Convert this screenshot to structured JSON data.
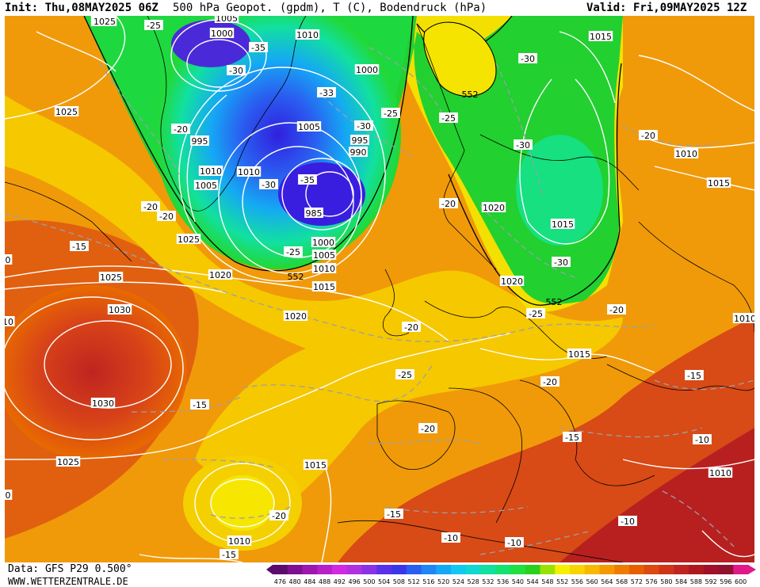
{
  "header": {
    "init": "Init: Thu,08MAY2025 06Z",
    "title": "500 hPa Geopot. (gpdm), T (C), Bodendruck (hPa)",
    "valid": "Valid: Fri,09MAY2025 12Z"
  },
  "footer": {
    "data": "Data: GFS P29 0.500°",
    "site": "WWW.WETTERZENTRALE.DE"
  },
  "legend": {
    "values": [
      "476",
      "480",
      "484",
      "488",
      "492",
      "496",
      "500",
      "504",
      "508",
      "512",
      "516",
      "520",
      "524",
      "528",
      "532",
      "536",
      "540",
      "544",
      "548",
      "552",
      "556",
      "560",
      "564",
      "568",
      "572",
      "576",
      "580",
      "584",
      "588",
      "592",
      "596",
      "600"
    ],
    "colors": [
      "#5c0a6e",
      "#7d1090",
      "#9b17ae",
      "#b81fc8",
      "#d228e0",
      "#b030e0",
      "#8a32e6",
      "#5a30e8",
      "#3b35ea",
      "#2a5ef0",
      "#1f86f2",
      "#15a8f4",
      "#12c8f0",
      "#10d8d0",
      "#12e0a0",
      "#16e070",
      "#1ee040",
      "#2ad01e",
      "#9ae000",
      "#f4f000",
      "#f8d400",
      "#f8b800",
      "#f49a00",
      "#ee7c00",
      "#e66000",
      "#dc4a10",
      "#d03418",
      "#c02420",
      "#b01820",
      "#a01028",
      "#901030",
      "#e01888"
    ]
  },
  "map_labels": {
    "isobars": [
      {
        "text": "1010"
      },
      {
        "text": "1005"
      },
      {
        "text": "1000"
      },
      {
        "text": "1010"
      },
      {
        "text": "1025"
      },
      {
        "text": "995"
      },
      {
        "text": "1005"
      },
      {
        "text": "1010"
      },
      {
        "text": "1010"
      },
      {
        "text": "1005"
      },
      {
        "text": "995"
      },
      {
        "text": "990"
      },
      {
        "text": "1000"
      },
      {
        "text": "985"
      },
      {
        "text": "1000"
      },
      {
        "text": "1005"
      },
      {
        "text": "1010"
      },
      {
        "text": "1015"
      },
      {
        "text": "1025"
      },
      {
        "text": "1020"
      },
      {
        "text": "1025"
      },
      {
        "text": "1030"
      },
      {
        "text": "1020"
      },
      {
        "text": "1030"
      },
      {
        "text": "1025"
      },
      {
        "text": "1015"
      },
      {
        "text": "1010"
      },
      {
        "text": "1015"
      },
      {
        "text": "1020"
      },
      {
        "text": "1015"
      },
      {
        "text": "1020"
      },
      {
        "text": "1015"
      },
      {
        "text": "1010"
      },
      {
        "text": "1015"
      },
      {
        "text": "1010"
      },
      {
        "text": "1010"
      },
      {
        "text": "1025"
      }
    ],
    "temperatures": [
      {
        "text": "-25"
      },
      {
        "text": "-35"
      },
      {
        "text": "-30"
      },
      {
        "text": "-20"
      },
      {
        "text": "-33"
      },
      {
        "text": "-25"
      },
      {
        "text": "-30"
      },
      {
        "text": "-30"
      },
      {
        "text": "-35"
      },
      {
        "text": "-20"
      },
      {
        "text": "-20"
      },
      {
        "text": "-15"
      },
      {
        "text": "-25"
      },
      {
        "text": "-25"
      },
      {
        "text": "-30"
      },
      {
        "text": "-30"
      },
      {
        "text": "-30"
      },
      {
        "text": "-20"
      },
      {
        "text": "-20"
      },
      {
        "text": "-25"
      },
      {
        "text": "-20"
      },
      {
        "text": "-25"
      },
      {
        "text": "-20"
      },
      {
        "text": "-15"
      },
      {
        "text": "-20"
      },
      {
        "text": "-15"
      },
      {
        "text": "-15"
      },
      {
        "text": "-10"
      },
      {
        "text": "-10"
      },
      {
        "text": "-15"
      },
      {
        "text": "-10"
      },
      {
        "text": "-10"
      },
      {
        "text": "-15"
      },
      {
        "text": "-20"
      },
      {
        "text": "-20"
      }
    ],
    "geopotential": [
      {
        "text": "552"
      },
      {
        "text": "552"
      },
      {
        "text": "552"
      }
    ],
    "edge": [
      {
        "text": "0"
      },
      {
        "text": "10"
      },
      {
        "text": "0"
      }
    ]
  }
}
